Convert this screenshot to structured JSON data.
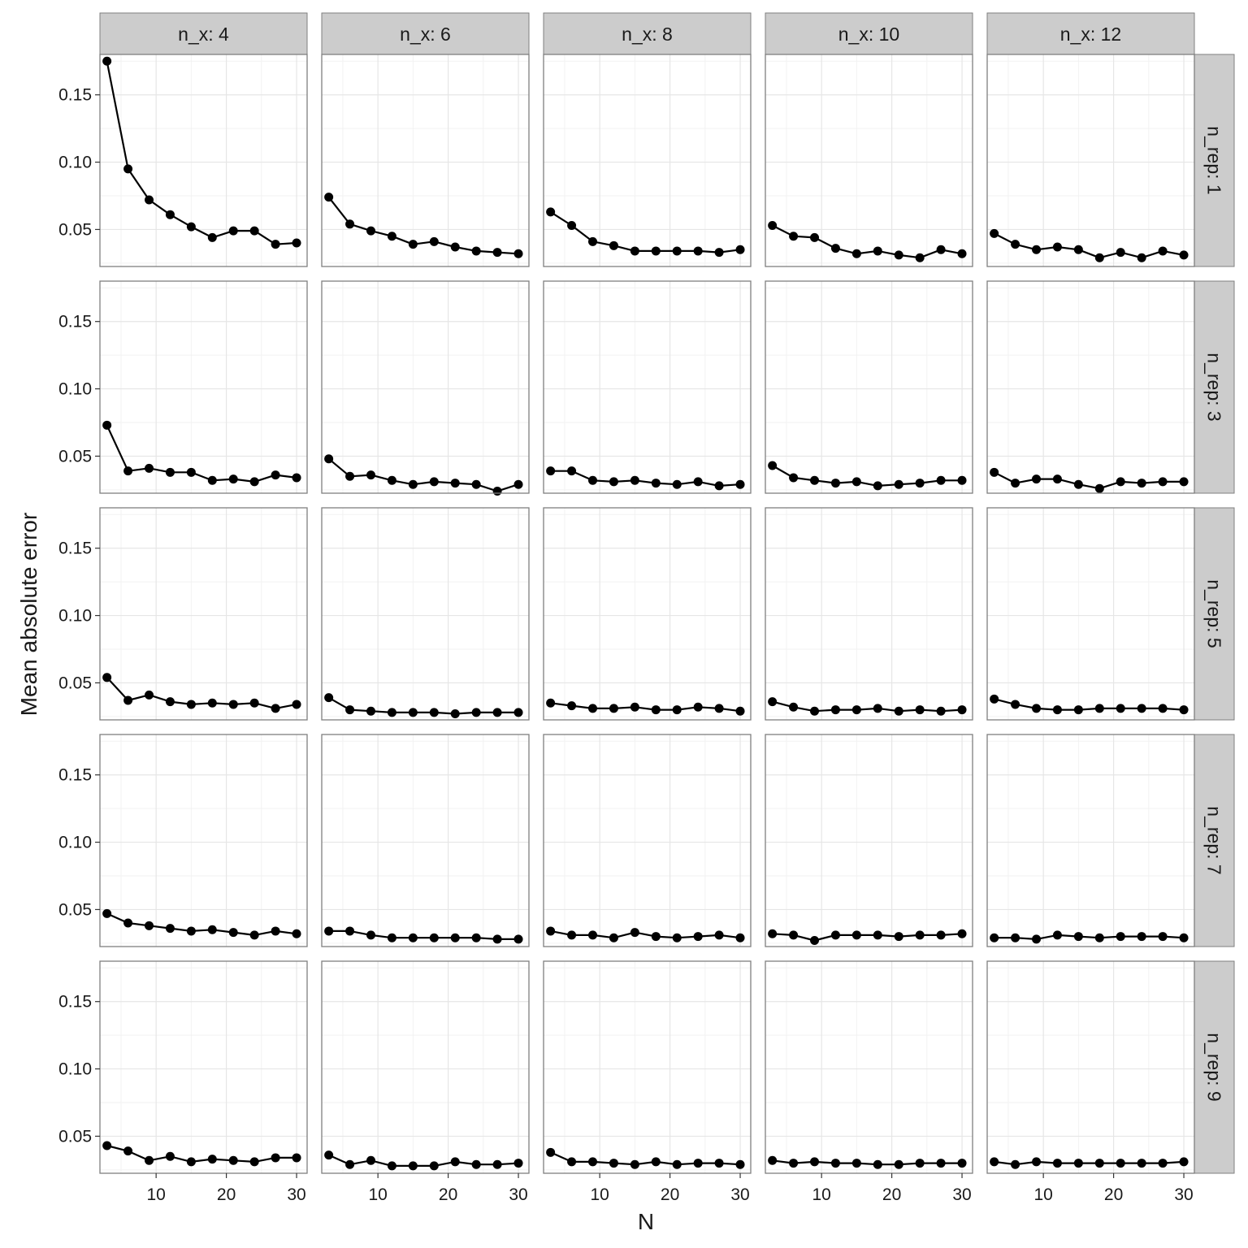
{
  "chart_data": {
    "type": "line",
    "facet_cols": {
      "var": "n_x",
      "labels": [
        "n_x: 4",
        "n_x: 6",
        "n_x: 8",
        "n_x: 10",
        "n_x: 12"
      ]
    },
    "facet_rows": {
      "var": "n_rep",
      "labels": [
        "n_rep: 1",
        "n_rep: 3",
        "n_rep: 5",
        "n_rep: 7",
        "n_rep: 9"
      ]
    },
    "xlabel": "N",
    "ylabel": "Mean absolute error",
    "x": [
      3,
      6,
      9,
      12,
      15,
      18,
      21,
      24,
      27,
      30
    ],
    "xlim": [
      2,
      31.5
    ],
    "ylim": [
      0.0225,
      0.18
    ],
    "xticks": [
      10,
      20,
      30
    ],
    "xtick_labels": [
      "10",
      "20",
      "30"
    ],
    "yticks": [
      0.05,
      0.1,
      0.15
    ],
    "ytick_labels": [
      "0.05",
      "0.10",
      "0.15"
    ],
    "grid": true,
    "colors": {
      "strip_bg": "#cccccc",
      "panel_border": "#7f7f7f",
      "grid_major": "#e6e6e6",
      "grid_minor": "#f2f2f2",
      "line": "#000000"
    },
    "panels": [
      [
        [
          0.175,
          0.095,
          0.072,
          0.061,
          0.052,
          0.044,
          0.049,
          0.049,
          0.039,
          0.04
        ],
        [
          0.074,
          0.054,
          0.049,
          0.045,
          0.039,
          0.041,
          0.037,
          0.034,
          0.033,
          0.032
        ],
        [
          0.063,
          0.053,
          0.041,
          0.038,
          0.034,
          0.034,
          0.034,
          0.034,
          0.033,
          0.035
        ],
        [
          0.053,
          0.045,
          0.044,
          0.036,
          0.032,
          0.034,
          0.031,
          0.029,
          0.035,
          0.032
        ],
        [
          0.047,
          0.039,
          0.035,
          0.037,
          0.035,
          0.029,
          0.033,
          0.029,
          0.034,
          0.031
        ]
      ],
      [
        [
          0.073,
          0.039,
          0.041,
          0.038,
          0.038,
          0.032,
          0.033,
          0.031,
          0.036,
          0.034
        ],
        [
          0.048,
          0.035,
          0.036,
          0.032,
          0.029,
          0.031,
          0.03,
          0.029,
          0.024,
          0.029
        ],
        [
          0.039,
          0.039,
          0.032,
          0.031,
          0.032,
          0.03,
          0.029,
          0.031,
          0.028,
          0.029
        ],
        [
          0.043,
          0.034,
          0.032,
          0.03,
          0.031,
          0.028,
          0.029,
          0.03,
          0.032,
          0.032
        ],
        [
          0.038,
          0.03,
          0.033,
          0.033,
          0.029,
          0.026,
          0.031,
          0.03,
          0.031,
          0.031
        ]
      ],
      [
        [
          0.054,
          0.037,
          0.041,
          0.036,
          0.034,
          0.035,
          0.034,
          0.035,
          0.031,
          0.034
        ],
        [
          0.039,
          0.03,
          0.029,
          0.028,
          0.028,
          0.028,
          0.027,
          0.028,
          0.028,
          0.028
        ],
        [
          0.035,
          0.033,
          0.031,
          0.031,
          0.032,
          0.03,
          0.03,
          0.032,
          0.031,
          0.029
        ],
        [
          0.036,
          0.032,
          0.029,
          0.03,
          0.03,
          0.031,
          0.029,
          0.03,
          0.029,
          0.03
        ],
        [
          0.038,
          0.034,
          0.031,
          0.03,
          0.03,
          0.031,
          0.031,
          0.031,
          0.031,
          0.03
        ]
      ],
      [
        [
          0.047,
          0.04,
          0.038,
          0.036,
          0.034,
          0.035,
          0.033,
          0.031,
          0.034,
          0.032
        ],
        [
          0.034,
          0.034,
          0.031,
          0.029,
          0.029,
          0.029,
          0.029,
          0.029,
          0.028,
          0.028
        ],
        [
          0.034,
          0.031,
          0.031,
          0.029,
          0.033,
          0.03,
          0.029,
          0.03,
          0.031,
          0.029
        ],
        [
          0.032,
          0.031,
          0.027,
          0.031,
          0.031,
          0.031,
          0.03,
          0.031,
          0.031,
          0.032
        ],
        [
          0.029,
          0.029,
          0.028,
          0.031,
          0.03,
          0.029,
          0.03,
          0.03,
          0.03,
          0.029
        ]
      ],
      [
        [
          0.043,
          0.039,
          0.032,
          0.035,
          0.031,
          0.033,
          0.032,
          0.031,
          0.034,
          0.034
        ],
        [
          0.036,
          0.029,
          0.032,
          0.028,
          0.028,
          0.028,
          0.031,
          0.029,
          0.029,
          0.03
        ],
        [
          0.038,
          0.031,
          0.031,
          0.03,
          0.029,
          0.031,
          0.029,
          0.03,
          0.03,
          0.029
        ],
        [
          0.032,
          0.03,
          0.031,
          0.03,
          0.03,
          0.029,
          0.029,
          0.03,
          0.03,
          0.03
        ],
        [
          0.031,
          0.029,
          0.031,
          0.03,
          0.03,
          0.03,
          0.03,
          0.03,
          0.03,
          0.031
        ]
      ]
    ]
  }
}
